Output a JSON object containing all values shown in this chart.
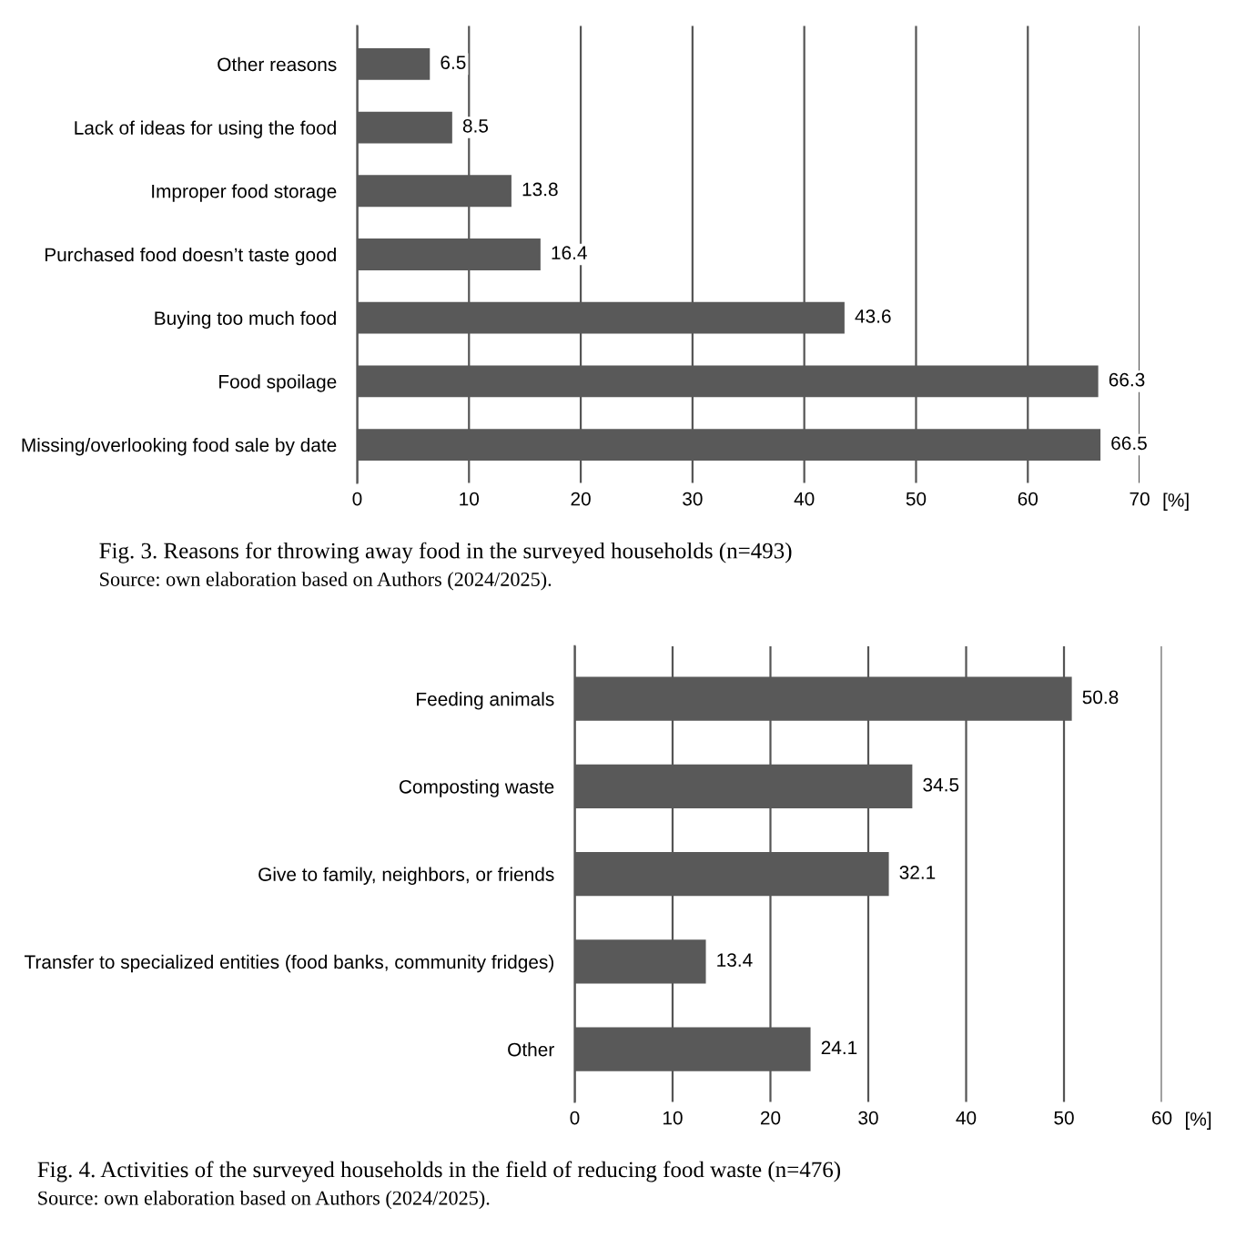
{
  "chart_data": [
    {
      "type": "bar",
      "orientation": "horizontal",
      "title": "Fig. 3. Reasons for throwing away food in the surveyed households (n=493)",
      "xlabel": "[%]",
      "annotations": [
        "Source: own elaboration based on Authors (2024/2025)."
      ],
      "categories": [
        "Other reasons",
        "Lack of ideas for using the food",
        "Improper food storage",
        "Purchased food doesn’t taste good",
        "Buying too much food",
        "Food spoilage",
        "Missing/overlooking food sale by date"
      ],
      "values": [
        6.5,
        8.5,
        13.8,
        16.4,
        43.6,
        66.3,
        66.5
      ],
      "color": "#595959",
      "xlim": [
        0,
        70
      ],
      "xticks": [
        0,
        10,
        20,
        30,
        40,
        50,
        60,
        70
      ],
      "grid": "x",
      "data_labels": true
    },
    {
      "type": "bar",
      "orientation": "horizontal",
      "title": "Fig. 4. Activities of the surveyed households in the field of reducing food waste (n=476)",
      "xlabel": "[%]",
      "annotations": [
        "Source: own elaboration based on Authors (2024/2025)."
      ],
      "categories": [
        "Feeding animals",
        "Composting waste",
        "Give to family, neighbors, or friends",
        "Transfer to specialized entities (food banks, community fridges)",
        "Other"
      ],
      "values": [
        50.8,
        34.5,
        32.1,
        13.4,
        24.1
      ],
      "color": "#595959",
      "xlim": [
        0,
        60
      ],
      "xticks": [
        0,
        10,
        20,
        30,
        40,
        50,
        60
      ],
      "grid": "x",
      "data_labels": true
    }
  ]
}
